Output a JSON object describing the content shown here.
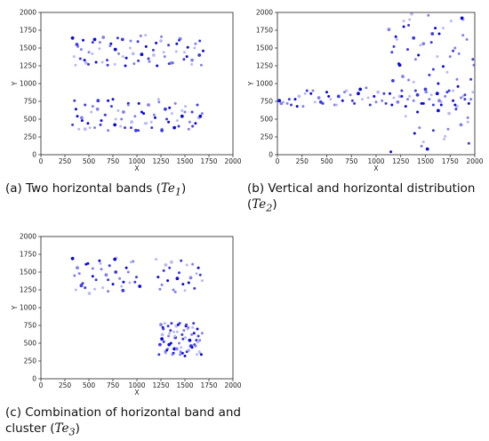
{
  "chart_data": [
    {
      "type": "scatter",
      "xlabel": "X",
      "ylabel": "Y",
      "xlim": [
        0,
        2000
      ],
      "ylim": [
        0,
        2000
      ],
      "xticks": [
        "0",
        "250",
        "500",
        "750",
        "1000",
        "1250",
        "1500",
        "1750",
        "2000"
      ],
      "yticks": [
        "0",
        "250",
        "500",
        "750",
        "1000",
        "1250",
        "1500",
        "1750",
        "2000"
      ],
      "caption": {
        "prefix": "(a) Two horizontal bands (",
        "symbol": "Te",
        "sub": "1",
        "suffix": ")"
      },
      "colors": [
        "#0a0ae0",
        "#3a3ae8",
        "#8080f0",
        "#b8b8f5"
      ],
      "series": [
        {
          "x": [
            330,
            360,
            385,
            410,
            440,
            470,
            500,
            540,
            575,
            610,
            650,
            690,
            730,
            770,
            810,
            850,
            890,
            930,
            970,
            1010,
            1050,
            1090,
            1130,
            1170,
            1210,
            1250,
            1290,
            1330,
            1370,
            1410,
            1450,
            1490,
            1530,
            1570,
            1610,
            1650,
            1690,
            345,
            420,
            495,
            560,
            640,
            720,
            800,
            880,
            960,
            1040,
            1120,
            1200,
            1280,
            1360,
            1440,
            1520,
            1600,
            1670,
            375,
            455,
            535,
            615,
            695,
            775,
            855,
            935,
            1015,
            1095,
            1175,
            1255,
            1335,
            1415,
            1495,
            1575,
            1655
          ],
          "y": [
            1640,
            1260,
            1520,
            1350,
            1610,
            1290,
            1440,
            1580,
            1300,
            1490,
            1650,
            1330,
            1560,
            1270,
            1420,
            1620,
            1360,
            1500,
            1280,
            1590,
            1410,
            1680,
            1310,
            1470,
            1250,
            1600,
            1380,
            1540,
            1290,
            1450,
            1630,
            1340,
            1510,
            1270,
            1560,
            1400,
            1460,
            1380,
            1480,
            1270,
            1620,
            1300,
            1530,
            1640,
            1250,
            1420,
            1670,
            1350,
            1570,
            1440,
            1290,
            1610,
            1380,
            1500,
            1260,
            1550,
            1330,
            1420,
            1580,
            1260,
            1480,
            1380,
            1600,
            1320,
            1520,
            1400,
            1660,
            1280,
            1560,
            1440,
            1330,
            1600
          ]
        },
        {
          "x": [
            330,
            365,
            395,
            425,
            460,
            490,
            525,
            560,
            595,
            630,
            665,
            700,
            735,
            770,
            805,
            840,
            875,
            910,
            945,
            980,
            1015,
            1050,
            1085,
            1120,
            1155,
            1190,
            1225,
            1260,
            1295,
            1330,
            1365,
            1400,
            1435,
            1470,
            1505,
            1540,
            1575,
            1610,
            1645,
            1680,
            350,
            430,
            510,
            590,
            670,
            750,
            830,
            910,
            990,
            1070,
            1150,
            1230,
            1310,
            1390,
            1470,
            1550,
            1630,
            380,
            460,
            540,
            620,
            700,
            780,
            860,
            940,
            1020,
            1100,
            1180,
            1260,
            1340,
            1420,
            1500,
            1580,
            1660
          ],
          "y": [
            420,
            640,
            360,
            520,
            700,
            440,
            600,
            380,
            760,
            480,
            560,
            340,
            680,
            420,
            620,
            500,
            380,
            720,
            460,
            540,
            340,
            600,
            440,
            700,
            380,
            520,
            780,
            360,
            640,
            460,
            580,
            720,
            400,
            540,
            680,
            360,
            600,
            440,
            520,
            580,
            760,
            480,
            380,
            640,
            560,
            780,
            400,
            700,
            340,
            580,
            460,
            740,
            500,
            380,
            620,
            460,
            700,
            540,
            360,
            680,
            420,
            760,
            500,
            600,
            380,
            720,
            440,
            560,
            340,
            660,
            480,
            600,
            400,
            540
          ]
        }
      ]
    },
    {
      "type": "scatter",
      "xlabel": "X",
      "ylabel": "Y",
      "xlim": [
        0,
        2000
      ],
      "ylim": [
        0,
        2000
      ],
      "xticks": [
        "0",
        "250",
        "500",
        "750",
        "1000",
        "1250",
        "1500",
        "1750",
        "2000"
      ],
      "yticks": [
        "0",
        "250",
        "500",
        "750",
        "1000",
        "1250",
        "1500",
        "1750",
        "2000"
      ],
      "caption": {
        "prefix": "(b) Vertical and horizontal distribution (",
        "symbol": "Te",
        "sub": "2",
        "suffix": ")"
      },
      "series": [
        {
          "x": [
            20,
            60,
            100,
            140,
            180,
            220,
            260,
            300,
            340,
            380,
            420,
            460,
            500,
            540,
            580,
            620,
            660,
            700,
            740,
            780,
            820,
            860,
            900,
            940,
            980,
            1020,
            1060,
            1100,
            1140,
            1180,
            1220,
            1260,
            1300,
            1340,
            1380,
            1420,
            1460,
            1500,
            1540,
            1580,
            1620,
            1660,
            1700,
            1740,
            1780,
            1820,
            1860,
            1900,
            1940,
            1980,
            40,
            120,
            200,
            280,
            360,
            440,
            520,
            600,
            680,
            760,
            840,
            920,
            1000,
            1080,
            1160,
            1240,
            1320,
            1400,
            1480,
            1560,
            1640,
            1720,
            1800,
            1880,
            1960
          ],
          "y": [
            760,
            740,
            720,
            700,
            780,
            820,
            680,
            900,
            860,
            740,
            800,
            720,
            880,
            780,
            700,
            820,
            760,
            900,
            840,
            720,
            860,
            780,
            940,
            700,
            820,
            880,
            760,
            720,
            860,
            800,
            740,
            900,
            680,
            820,
            760,
            840,
            720,
            880,
            780,
            700,
            860,
            740,
            820,
            900,
            760,
            680,
            800,
            840,
            720,
            880,
            720,
            780,
            680,
            860,
            900,
            740,
            820,
            700,
            880,
            760,
            920,
            800,
            740,
            860,
            700,
            820,
            780,
            900,
            720,
            840,
            760,
            880,
            700,
            820,
            780
          ]
        },
        {
          "x": [
            1130,
            1180,
            1230,
            1280,
            1330,
            1380,
            1430,
            1480,
            1530,
            1580,
            1630,
            1680,
            1730,
            1780,
            1830,
            1880,
            1930,
            1980,
            1150,
            1210,
            1270,
            1330,
            1390,
            1450,
            1510,
            1570,
            1630,
            1690,
            1750,
            1810,
            1870,
            1930,
            1990,
            1160,
            1260,
            1360,
            1460,
            1560,
            1660,
            1760,
            1860,
            1960,
            1200,
            1300,
            1400,
            1500,
            1600,
            1700,
            1800,
            1900,
            1240,
            1340,
            1440,
            1540,
            1640,
            1740,
            1840,
            1940,
            1280,
            1380,
            1480,
            1580,
            1680,
            1780,
            1880,
            1170,
            1420,
            1620,
            1820,
            1320,
            1520,
            1720,
            1920
          ],
          "y": [
            1760,
            1520,
            1280,
            1880,
            1050,
            1640,
            1400,
            180,
            1960,
            1200,
            620,
            1780,
            360,
            1460,
            960,
            1900,
            520,
            1340,
            40,
            1620,
            1100,
            1820,
            300,
            1540,
            880,
            1700,
            1000,
            220,
            1380,
            640,
            1920,
            460,
            1260,
            1440,
            820,
            1980,
            120,
            1580,
            700,
            1880,
            420,
            1060,
            1660,
            540,
            1340,
            920,
            1780,
            260,
            1500,
            780,
            1260,
            1900,
            380,
            1120,
            1700,
            580,
            1420,
            160,
            1800,
            1020,
            1560,
            340,
            1240,
            900,
            1680,
            1040,
            600,
            1380,
            1060,
            1480,
            80,
            1160,
            1620
          ]
        }
      ]
    },
    {
      "type": "scatter",
      "xlabel": "X",
      "ylabel": "Y",
      "xlim": [
        0,
        2000
      ],
      "ylim": [
        0,
        2000
      ],
      "xticks": [
        "0",
        "250",
        "500",
        "750",
        "1000",
        "1250",
        "1500",
        "1750",
        "2000"
      ],
      "yticks": [
        "0",
        "250",
        "500",
        "750",
        "1000",
        "1250",
        "1500",
        "1750",
        "2000"
      ],
      "caption": {
        "prefix": "(c) Combination of horizontal band and cluster (",
        "symbol": "Te",
        "sub": "3",
        "suffix": ")"
      },
      "series": [
        {
          "x": [
            330,
            365,
            400,
            435,
            470,
            505,
            540,
            575,
            610,
            645,
            680,
            715,
            750,
            785,
            820,
            855,
            890,
            925,
            960,
            995,
            1030,
            1200,
            1240,
            1280,
            1320,
            1360,
            1400,
            1440,
            1480,
            1520,
            1560,
            1600,
            1640,
            1680,
            350,
            420,
            490,
            560,
            630,
            700,
            770,
            840,
            910,
            980,
            1220,
            1300,
            1380,
            1460,
            1540,
            1620,
            380,
            460,
            540,
            620,
            700,
            780,
            860,
            940,
            1260,
            1340,
            1420,
            1500,
            1580,
            1660
          ],
          "y": [
            1690,
            1250,
            1480,
            1340,
            1610,
            1200,
            1550,
            1390,
            1660,
            1280,
            1460,
            1590,
            1330,
            1700,
            1410,
            1240,
            1560,
            1350,
            1650,
            1430,
            1300,
            1680,
            1260,
            1520,
            1380,
            1640,
            1220,
            1490,
            1330,
            1600,
            1420,
            1270,
            1560,
            1380,
            1450,
            1310,
            1620,
            1260,
            1540,
            1390,
            1680,
            1300,
            1500,
            1360,
            1430,
            1600,
            1250,
            1660,
            1350,
            1480,
            1560,
            1280,
            1440,
            1620,
            1230,
            1500,
            1360,
            1640,
            1320,
            1560,
            1410,
            1240,
            1610,
            1460
          ]
        },
        {
          "x": [
            1230,
            1260,
            1290,
            1320,
            1350,
            1380,
            1410,
            1440,
            1470,
            1500,
            1530,
            1560,
            1590,
            1620,
            1650,
            1680,
            1240,
            1270,
            1300,
            1330,
            1360,
            1390,
            1420,
            1450,
            1480,
            1510,
            1540,
            1570,
            1600,
            1630,
            1660,
            1250,
            1280,
            1310,
            1340,
            1370,
            1400,
            1430,
            1460,
            1490,
            1520,
            1550,
            1580,
            1610,
            1640,
            1670,
            1265,
            1295,
            1325,
            1355,
            1385,
            1415,
            1445,
            1475,
            1505,
            1535,
            1565,
            1595,
            1625,
            1655,
            1275,
            1335,
            1395,
            1455,
            1515,
            1575,
            1635
          ],
          "y": [
            340,
            560,
            780,
            420,
            680,
            360,
            740,
            500,
            620,
            320,
            700,
            460,
            780,
            540,
            380,
            640,
            480,
            720,
            360,
            600,
            780,
            420,
            660,
            340,
            560,
            740,
            400,
            620,
            480,
            700,
            360,
            760,
            520,
            400,
            640,
            340,
            580,
            760,
            440,
            680,
            380,
            540,
            720,
            460,
            600,
            340,
            620,
            380,
            740,
            500,
            660,
            420,
            780,
            360,
            580,
            720,
            460,
            640,
            340,
            540,
            700,
            480,
            600,
            380,
            760,
            440,
            520
          ]
        }
      ]
    }
  ]
}
